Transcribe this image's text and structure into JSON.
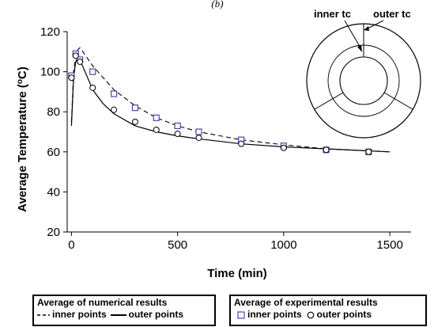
{
  "figure_label": "(b)",
  "chart_data": {
    "type": "line",
    "xlabel": "Time (min)",
    "ylabel_prefix": "Average Temperature (",
    "ylabel_sup": "o",
    "ylabel_suffix": "C)",
    "xlim": [
      -20,
      1600
    ],
    "ylim": [
      20,
      120
    ],
    "xticks": [
      0,
      500,
      1000,
      1500
    ],
    "yticks": [
      20,
      40,
      60,
      80,
      100,
      120
    ],
    "grid": false,
    "series": [
      {
        "name": "inner points",
        "kind": "numerical",
        "style": "dashed",
        "x": [
          0,
          10,
          20,
          30,
          40,
          60,
          80,
          100,
          150,
          200,
          300,
          400,
          500,
          600,
          800,
          1000,
          1200,
          1400,
          1500
        ],
        "y": [
          75,
          100,
          107,
          111,
          112,
          109,
          106,
          103,
          97,
          91,
          83,
          77,
          73,
          70,
          66,
          63.5,
          61.5,
          60.5,
          60
        ]
      },
      {
        "name": "outer points",
        "kind": "numerical",
        "style": "solid",
        "x": [
          0,
          10,
          20,
          30,
          40,
          60,
          80,
          100,
          150,
          200,
          300,
          400,
          500,
          600,
          800,
          1000,
          1200,
          1400,
          1500
        ],
        "y": [
          73,
          97,
          105,
          107,
          106,
          101,
          96,
          91,
          84,
          79,
          73,
          70,
          68,
          66.5,
          64,
          62.5,
          61.5,
          60.5,
          60
        ]
      },
      {
        "name": "inner points",
        "kind": "experimental",
        "marker": "square",
        "x": [
          0,
          20,
          40,
          100,
          200,
          300,
          400,
          500,
          600,
          800,
          1000,
          1200,
          1400
        ],
        "y": [
          98,
          109,
          106,
          100,
          89,
          82,
          77,
          73,
          70,
          66,
          63,
          61,
          60
        ]
      },
      {
        "name": "outer points",
        "kind": "experimental",
        "marker": "circle",
        "x": [
          0,
          20,
          40,
          100,
          200,
          300,
          400,
          500,
          600,
          800,
          1000,
          1200,
          1400
        ],
        "y": [
          97,
          108,
          105,
          92,
          81,
          75,
          71,
          69,
          67,
          64,
          62,
          61,
          60
        ]
      }
    ]
  },
  "inset": {
    "inner_label": "inner tc",
    "outer_label": "outer tc"
  },
  "legend": {
    "numerical_title": "Average of numerical results",
    "numerical_inner": "inner points",
    "numerical_outer": "outer points",
    "experimental_title": "Average of experimental results",
    "experimental_inner": "inner points",
    "experimental_outer": "outer points"
  }
}
